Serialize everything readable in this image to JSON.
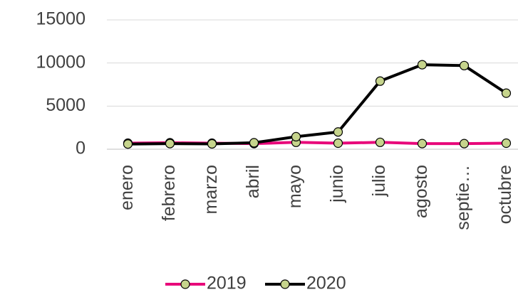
{
  "chart_data": {
    "type": "line",
    "categories": [
      "enero",
      "febrero",
      "marzo",
      "abril",
      "mayo",
      "junio",
      "julio",
      "agosto",
      "septie…",
      "octubre"
    ],
    "series": [
      {
        "name": "2019",
        "color": "#e8077a",
        "values": [
          700,
          750,
          700,
          650,
          800,
          700,
          800,
          650,
          650,
          700
        ]
      },
      {
        "name": "2020",
        "color": "#000000",
        "values": [
          600,
          650,
          620,
          750,
          1450,
          2000,
          7900,
          9800,
          9700,
          6500
        ]
      }
    ],
    "marker_color": "#c6d48c",
    "ylim": [
      0,
      15000
    ],
    "yticks": [
      0,
      5000,
      10000,
      15000
    ],
    "grid": true
  }
}
